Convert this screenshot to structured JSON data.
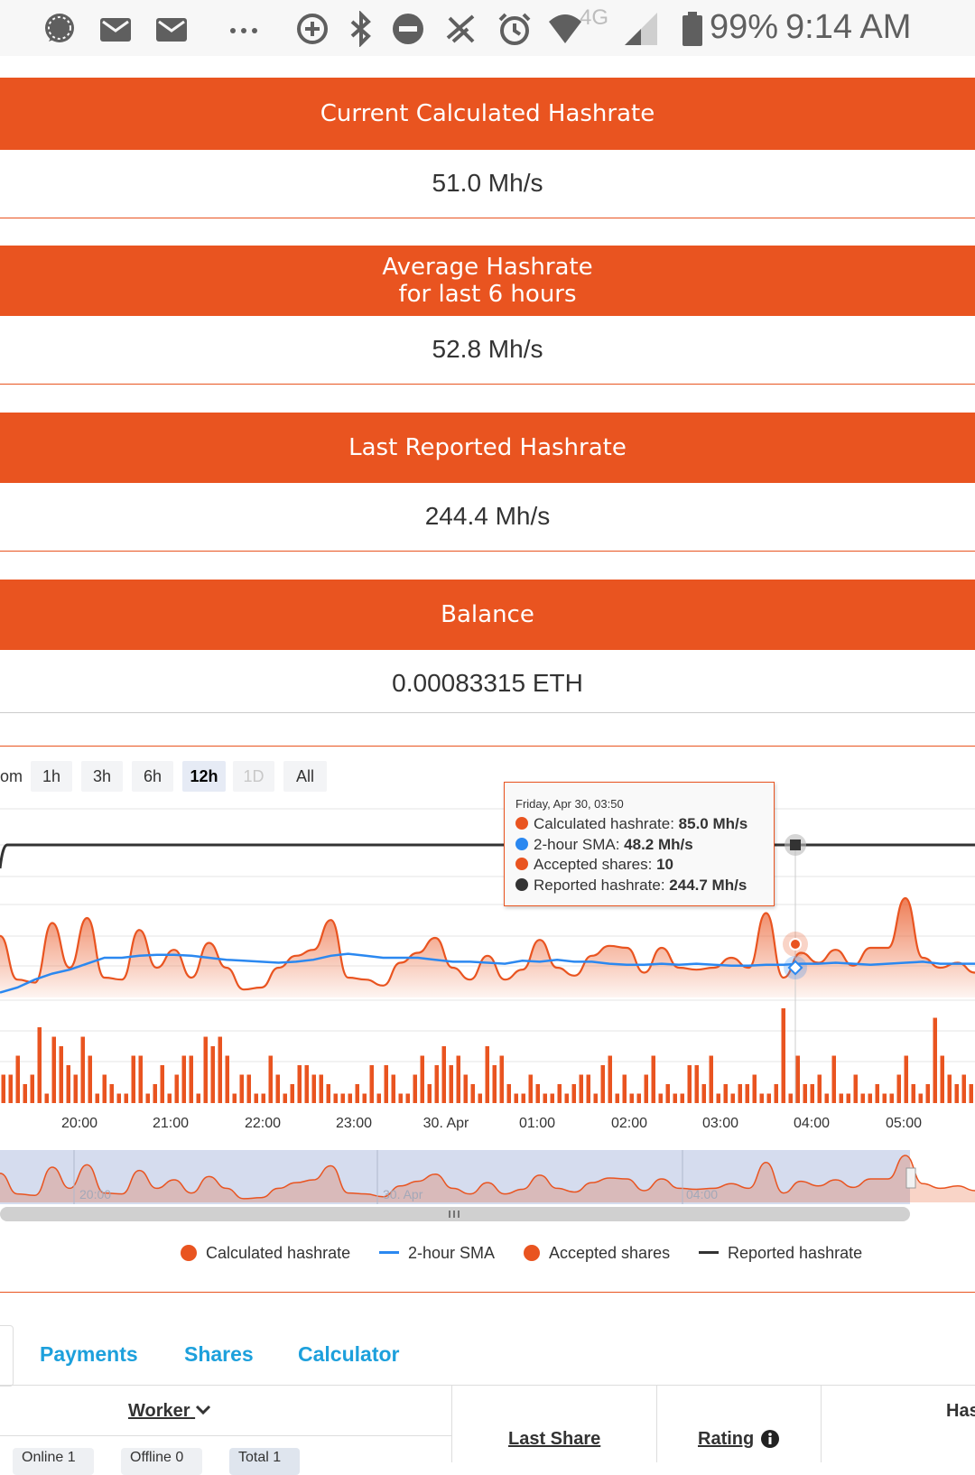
{
  "status_bar": {
    "battery": "99%",
    "time": "9:14 AM",
    "network": "4G",
    "icons": [
      "messenger-icon",
      "mail-icon",
      "mail-icon",
      "more-icon",
      "data-saver-icon",
      "bluetooth-icon",
      "dnd-icon",
      "no-signal-icon",
      "alarm-icon",
      "wifi-icon",
      "signal-icon",
      "battery-icon"
    ]
  },
  "stats": [
    {
      "label_lines": [
        "Current Calculated Hashrate"
      ],
      "value": "51.0 Mh/s"
    },
    {
      "label_lines": [
        "Average Hashrate",
        "for last 6 hours"
      ],
      "value": "52.8 Mh/s"
    },
    {
      "label_lines": [
        "Last Reported Hashrate"
      ],
      "value": "244.4 Mh/s"
    },
    {
      "label_lines": [
        "Balance"
      ],
      "value": "0.00083315 ETH"
    }
  ],
  "range_selector": {
    "lead_text": "om",
    "buttons": [
      "1h",
      "3h",
      "6h",
      "12h",
      "1D",
      "All"
    ],
    "selected": "12h",
    "disabled": "1D"
  },
  "tooltip": {
    "date": "Friday, Apr 30, 03:50",
    "rows": [
      {
        "label": "Calculated hashrate:",
        "value": "85.0 Mh/s",
        "color": "#e95420"
      },
      {
        "label": "2-hour SMA:",
        "value": "48.2 Mh/s",
        "color": "#2b88f0"
      },
      {
        "label": "Accepted shares:",
        "value": "10",
        "color": "#e95420"
      },
      {
        "label": "Reported hashrate:",
        "value": "244.7 Mh/s",
        "color": "#333333"
      }
    ]
  },
  "chart_data": {
    "type": "line",
    "x_labels": [
      "20:00",
      "21:00",
      "22:00",
      "23:00",
      "30. Apr",
      "01:00",
      "02:00",
      "03:00",
      "04:00",
      "05:00"
    ],
    "navigator_labels": [
      "20:00",
      "30. Apr",
      "04:00"
    ],
    "series": [
      {
        "name": "Calculated hashrate",
        "type": "area",
        "color": "#e95420",
        "values": [
          62,
          18,
          15,
          75,
          30,
          80,
          20,
          18,
          68,
          30,
          48,
          20,
          55,
          30,
          8,
          10,
          30,
          42,
          48,
          78,
          20,
          18,
          12,
          35,
          45,
          60,
          30,
          18,
          42,
          18,
          28,
          58,
          30,
          22,
          42,
          52,
          50,
          25,
          50,
          30,
          28,
          30,
          40,
          30,
          85,
          20,
          45,
          35,
          48,
          32,
          50,
          50,
          100,
          40,
          30,
          35,
          25
        ]
      },
      {
        "name": "2-hour SMA",
        "type": "line",
        "color": "#2b88f0",
        "values": [
          5,
          10,
          18,
          24,
          28,
          34,
          40,
          40,
          42,
          43,
          43,
          42,
          40,
          38,
          37,
          36,
          35,
          36,
          38,
          42,
          44,
          42,
          40,
          40,
          40,
          38,
          36,
          36,
          35,
          34,
          37,
          36,
          38,
          36,
          36,
          34,
          33,
          33,
          34,
          33,
          34,
          33,
          32,
          32,
          33,
          33,
          34,
          34,
          35,
          34,
          33,
          34,
          35,
          36,
          34,
          34,
          34
        ]
      },
      {
        "name": "Accepted shares",
        "type": "column",
        "color": "#e95420",
        "values": [
          3,
          3,
          5,
          2,
          3,
          8,
          1,
          7,
          6,
          4,
          3,
          7,
          5,
          1,
          3,
          2,
          1,
          1,
          5,
          5,
          1,
          2,
          4,
          1,
          3,
          5,
          5,
          1,
          7,
          6,
          7,
          5,
          1,
          3,
          3,
          1,
          1,
          5,
          3,
          1,
          2,
          4,
          4,
          3,
          3,
          2,
          1,
          1,
          1,
          2,
          1,
          4,
          1,
          4,
          3,
          1,
          1,
          3,
          5,
          2,
          4,
          6,
          4,
          5,
          3,
          2,
          1,
          6,
          4,
          5,
          2,
          1,
          1,
          3,
          2,
          1,
          1,
          2,
          1,
          2,
          3,
          3,
          1,
          4,
          5,
          1,
          3,
          1,
          1,
          3,
          5,
          1,
          2,
          1,
          1,
          4,
          4,
          2,
          5,
          1,
          2,
          1,
          2,
          2,
          3,
          1,
          1,
          2,
          10,
          1,
          5,
          2,
          2,
          3,
          1,
          5,
          1,
          1,
          3,
          1,
          1,
          2,
          1,
          1,
          3,
          5,
          2,
          1,
          2,
          9,
          5,
          3,
          2,
          3,
          2
        ]
      },
      {
        "name": "Reported hashrate",
        "type": "line",
        "color": "#333333",
        "values": [
          244.7
        ]
      }
    ],
    "highlight": {
      "calculated_hashrate": "85.0 Mh/s",
      "sma": "48.2 Mh/s",
      "accepted_shares": 10,
      "reported_hashrate": "244.7 Mh/s"
    }
  },
  "legend": [
    {
      "label": "Calculated hashrate",
      "symbol": "dot",
      "color": "#e95420"
    },
    {
      "label": "2-hour SMA",
      "symbol": "line",
      "color": "#2b88f0"
    },
    {
      "label": "Accepted shares",
      "symbol": "dot",
      "color": "#e95420"
    },
    {
      "label": "Reported hashrate",
      "symbol": "line",
      "color": "#333333"
    }
  ],
  "tabs": [
    "Payments",
    "Shares",
    "Calculator"
  ],
  "table": {
    "headers": {
      "worker": "Worker",
      "last_share": "Last Share",
      "rating": "Rating",
      "hashrate": "Has"
    },
    "filters": [
      "Online 1",
      "Offline 0",
      "Total 1"
    ]
  },
  "colors": {
    "accent": "#e95420",
    "link": "#1da0dc",
    "sma": "#2b88f0"
  }
}
